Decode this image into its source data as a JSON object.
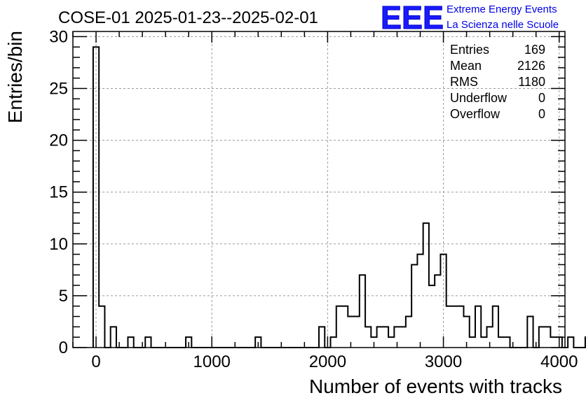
{
  "header": {
    "title": "COSE-01 2025-01-23--2025-02-01",
    "logo_text": "EEE",
    "logo_line1": "Extreme Energy Events",
    "logo_line2": "La Scienza nelle Scuole"
  },
  "stats": [
    {
      "label": "Entries",
      "value": "169"
    },
    {
      "label": "Mean",
      "value": "2126"
    },
    {
      "label": "RMS",
      "value": "1180"
    },
    {
      "label": "Underflow",
      "value": "0"
    },
    {
      "label": "Overflow",
      "value": "0"
    }
  ],
  "chart_data": {
    "type": "bar",
    "xlabel": "Number of events with tracks",
    "ylabel": "Entries/bin",
    "xlim": [
      -200,
      4050
    ],
    "ylim": [
      0,
      30.5
    ],
    "bin_start": -25,
    "bin_width": 50,
    "x_ticks": [
      0,
      1000,
      2000,
      3000,
      4000
    ],
    "y_ticks": [
      0,
      5,
      10,
      15,
      20,
      25,
      30
    ],
    "grid": true,
    "line_color": "#000000",
    "values": [
      29,
      4,
      0,
      2,
      0,
      0,
      1,
      0,
      0,
      1,
      0,
      0,
      0,
      0,
      0,
      0,
      1,
      0,
      0,
      0,
      0,
      0,
      0,
      0,
      0,
      0,
      0,
      0,
      1,
      0,
      0,
      0,
      0,
      0,
      0,
      0,
      0,
      0,
      0,
      2,
      0,
      1,
      4,
      4,
      3,
      3,
      7,
      2,
      1,
      2,
      2,
      1,
      2,
      2,
      3,
      8,
      9,
      12,
      6,
      7,
      9,
      4,
      4,
      4,
      3,
      1,
      4,
      1,
      2,
      4,
      1,
      1,
      0,
      0,
      0,
      3,
      0,
      2,
      2,
      1,
      1,
      0,
      1,
      0,
      0,
      1
    ]
  }
}
